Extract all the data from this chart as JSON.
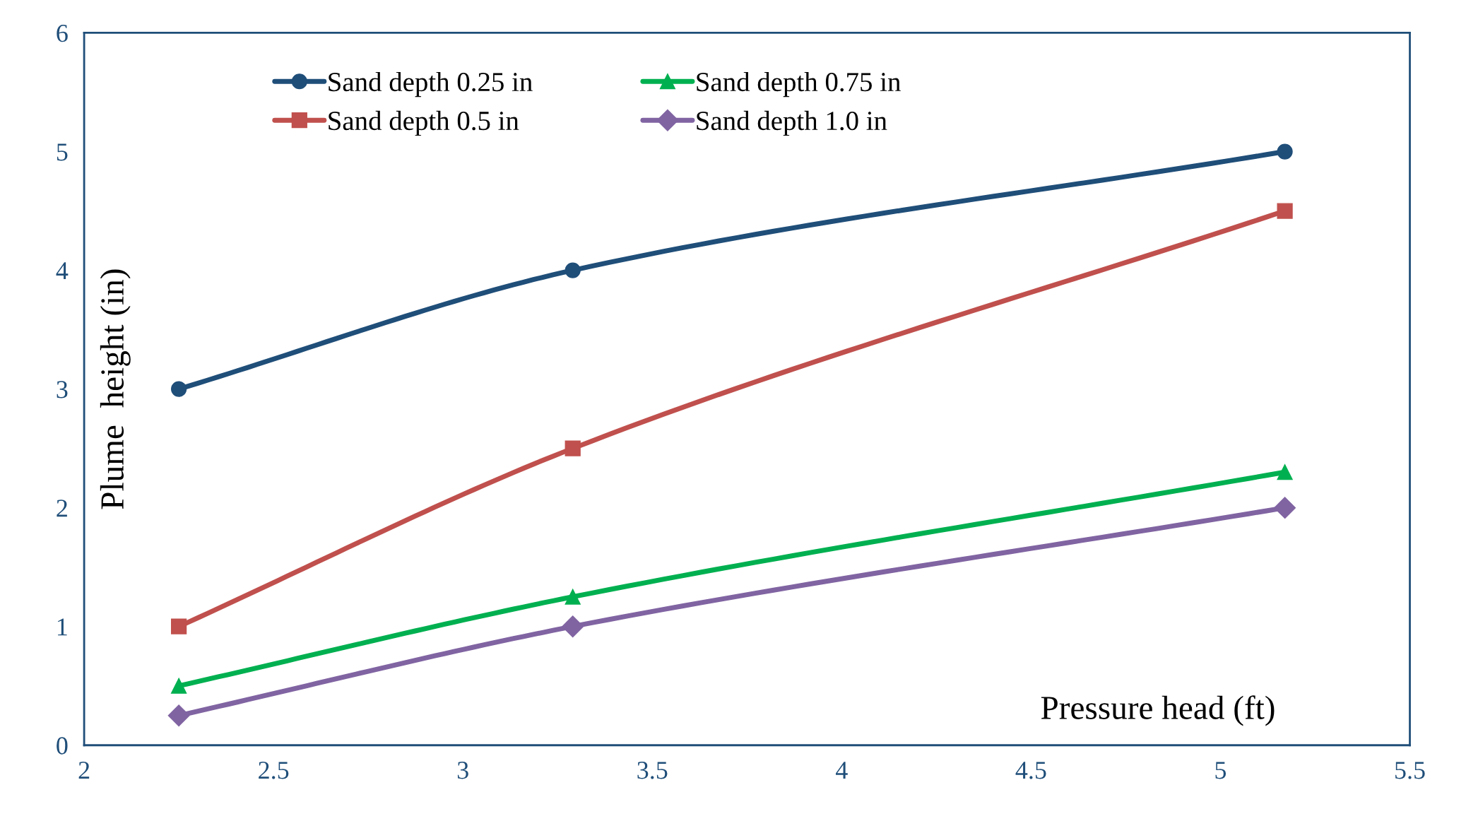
{
  "chart_data": {
    "type": "line",
    "xlabel": "Pressure head (ft)",
    "ylabel": "Plume  height (in)",
    "x": [
      2.25,
      3.29,
      5.17
    ],
    "series": [
      {
        "name": "Sand depth 0.25 in",
        "color": "#1f4e79",
        "marker": "circle",
        "values": [
          3,
          4,
          5
        ]
      },
      {
        "name": "Sand depth 0.5 in",
        "color": "#c0504d",
        "marker": "square",
        "values": [
          1,
          2.5,
          4.5
        ]
      },
      {
        "name": "Sand depth 0.75 in",
        "color": "#00b050",
        "marker": "triangle",
        "values": [
          0.5,
          1.25,
          2.3
        ]
      },
      {
        "name": "Sand depth 1.0 in",
        "color": "#8064a2",
        "marker": "diamond",
        "values": [
          0.25,
          1.0,
          2.0
        ]
      }
    ],
    "xlim": [
      2,
      5.5
    ],
    "xticks": [
      2,
      2.5,
      3,
      3.5,
      4,
      4.5,
      5,
      5.5
    ],
    "ylim": [
      0,
      6
    ],
    "yticks": [
      0,
      1,
      2,
      3,
      4,
      5,
      6
    ],
    "grid": false,
    "legend": "top",
    "line_style": "solid"
  }
}
